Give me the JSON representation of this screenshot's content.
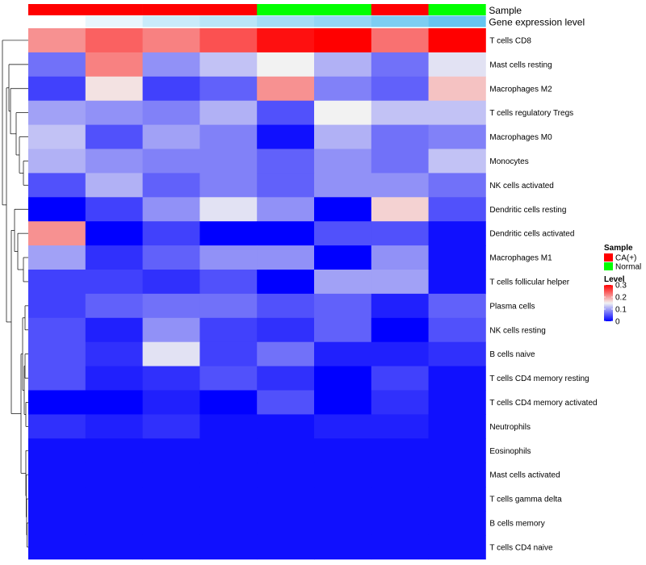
{
  "chart_data": {
    "type": "heatmap",
    "annotation_labels": [
      "Sample",
      "Gene expression level"
    ],
    "sample_groups": [
      "CA(+)",
      "CA(+)",
      "CA(+)",
      "CA(+)",
      "Normal",
      "Normal",
      "CA(+)",
      "Normal"
    ],
    "gene_expression_level": [
      0.0,
      0.15,
      0.35,
      0.45,
      0.6,
      0.7,
      0.85,
      1.0
    ],
    "rows": [
      "T cells CD8",
      "Mast cells resting",
      "Macrophages M2",
      "T cells regulatory  Tregs",
      "Macrophages M0",
      "Monocytes",
      "NK cells activated",
      "Dendritic cells resting",
      "Dendritic cells activated",
      "Macrophages M1",
      "T cells follicular helper",
      "Plasma cells",
      "NK cells resting",
      "B cells naive",
      "T cells CD4 memory resting",
      "T cells CD4 memory activated",
      "Neutrophils",
      "Eosinophils",
      "Mast cells activated",
      "T cells gamma delta",
      "B cells memory",
      "T cells CD4 naive"
    ],
    "values": [
      [
        0.21,
        0.24,
        0.22,
        0.25,
        0.29,
        0.3,
        0.23,
        0.3
      ],
      [
        0.07,
        0.22,
        0.09,
        0.12,
        0.15,
        0.11,
        0.07,
        0.14
      ],
      [
        0.04,
        0.16,
        0.04,
        0.06,
        0.21,
        0.08,
        0.06,
        0.18
      ],
      [
        0.1,
        0.09,
        0.08,
        0.11,
        0.05,
        0.15,
        0.12,
        0.12
      ],
      [
        0.12,
        0.05,
        0.1,
        0.08,
        0.01,
        0.11,
        0.07,
        0.08
      ],
      [
        0.11,
        0.09,
        0.08,
        0.08,
        0.06,
        0.09,
        0.07,
        0.12
      ],
      [
        0.05,
        0.11,
        0.06,
        0.08,
        0.06,
        0.09,
        0.09,
        0.07
      ],
      [
        0.0,
        0.04,
        0.09,
        0.14,
        0.09,
        0.0,
        0.17,
        0.05
      ],
      [
        0.21,
        0.0,
        0.04,
        0.0,
        0.0,
        0.05,
        0.05,
        0.01
      ],
      [
        0.1,
        0.03,
        0.06,
        0.09,
        0.09,
        0.0,
        0.09,
        0.01
      ],
      [
        0.04,
        0.04,
        0.03,
        0.05,
        0.0,
        0.1,
        0.1,
        0.01
      ],
      [
        0.04,
        0.06,
        0.07,
        0.07,
        0.05,
        0.06,
        0.02,
        0.06
      ],
      [
        0.05,
        0.02,
        0.09,
        0.04,
        0.03,
        0.06,
        0.0,
        0.05
      ],
      [
        0.05,
        0.03,
        0.14,
        0.04,
        0.07,
        0.02,
        0.02,
        0.03
      ],
      [
        0.05,
        0.02,
        0.03,
        0.05,
        0.03,
        0.0,
        0.04,
        0.01
      ],
      [
        0.0,
        0.0,
        0.02,
        0.0,
        0.05,
        0.0,
        0.03,
        0.01
      ],
      [
        0.03,
        0.02,
        0.03,
        0.01,
        0.01,
        0.02,
        0.02,
        0.01
      ],
      [
        0.01,
        0.01,
        0.01,
        0.01,
        0.01,
        0.01,
        0.01,
        0.01
      ],
      [
        0.01,
        0.01,
        0.01,
        0.01,
        0.01,
        0.01,
        0.01,
        0.01
      ],
      [
        0.01,
        0.01,
        0.01,
        0.01,
        0.01,
        0.01,
        0.01,
        0.01
      ],
      [
        0.01,
        0.01,
        0.01,
        0.01,
        0.01,
        0.01,
        0.01,
        0.01
      ],
      [
        0.01,
        0.01,
        0.01,
        0.01,
        0.01,
        0.01,
        0.01,
        0.01
      ]
    ],
    "color_scale": {
      "min": 0,
      "mid": 0.15,
      "max": 0.3,
      "low": "#0000ff",
      "mid_color": "#f2f2f2",
      "high": "#ff0000"
    },
    "expression_colors": {
      "low": "#ffffff",
      "high": "#66c5f0"
    },
    "legend": {
      "sample_title": "Sample",
      "sample_entries": [
        {
          "label": "CA(+)",
          "color": "#ff0000"
        },
        {
          "label": "Normal",
          "color": "#00ff00"
        }
      ],
      "level_title": "Level",
      "level_ticks": [
        "0.3",
        "0.2",
        "0.1",
        "0"
      ],
      "level_tick_values": [
        0.3,
        0.2,
        0.1,
        0
      ]
    },
    "dendrogram": "row clustering (left)"
  }
}
